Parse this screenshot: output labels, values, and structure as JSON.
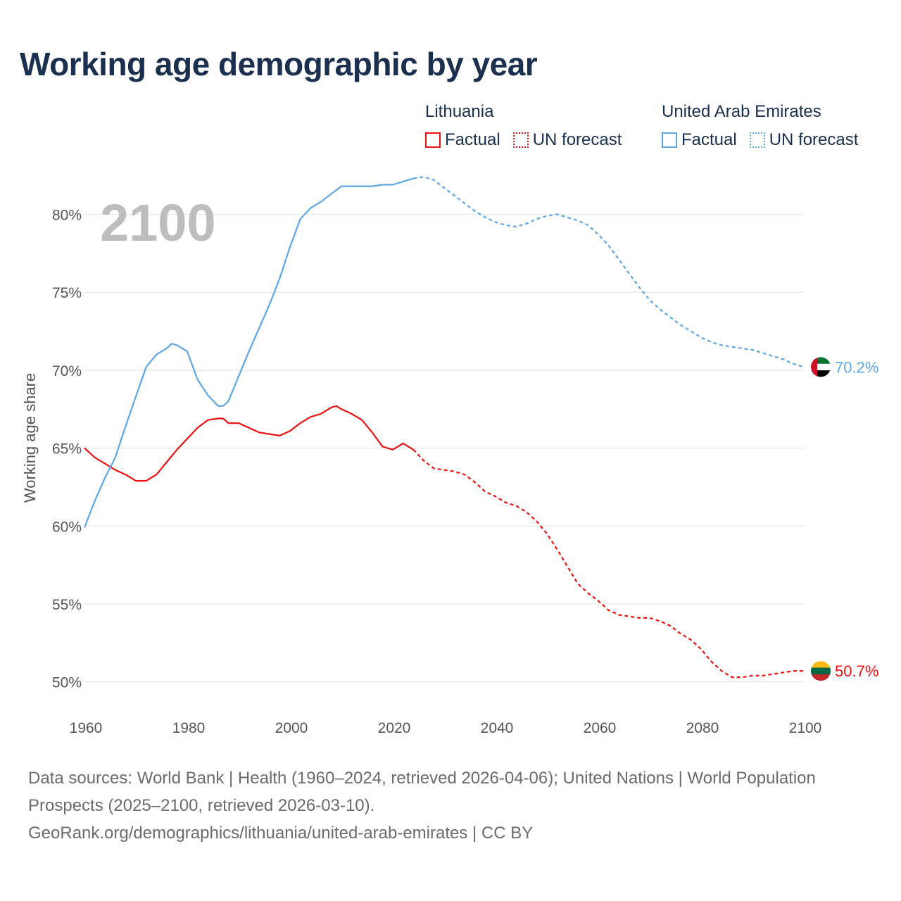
{
  "title": "Working age demographic by year",
  "legend": [
    {
      "country": "Lithuania",
      "factual_label": "Factual",
      "forecast_label": "UN forecast",
      "color": "#ee1111"
    },
    {
      "country": "United Arab Emirates",
      "factual_label": "Factual",
      "forecast_label": "UN forecast",
      "color": "#5ea7e6"
    }
  ],
  "sources": {
    "line1": "Data sources: World Bank | Health (1960–2024, retrieved 2026-04-06); United Nations | World Population Prospects (2025–2100, retrieved 2026-03-10).",
    "line2": "GeoRank.org/demographics/lithuania/united-arab-emirates | CC BY"
  },
  "chart_data": {
    "type": "line",
    "title": "Working age demographic by year",
    "xlabel": "",
    "ylabel": "Working age share",
    "year_display": "2100",
    "xlim": [
      1960,
      2100
    ],
    "ylim": [
      48,
      83
    ],
    "x_ticks": [
      1960,
      1980,
      2000,
      2020,
      2040,
      2060,
      2080,
      2100
    ],
    "x_tick_labels": [
      "1960",
      "1980",
      "2000",
      "2020",
      "2040",
      "2060",
      "2080",
      "2100"
    ],
    "y_ticks": [
      50,
      55,
      60,
      65,
      70,
      75,
      80
    ],
    "y_tick_labels": [
      "50%",
      "55%",
      "60%",
      "65%",
      "70%",
      "75%",
      "80%"
    ],
    "grid": true,
    "factual_end_year": 2024,
    "series": [
      {
        "name": "Lithuania",
        "color": "#ee1111",
        "end_label": "50.7%",
        "flag_icon": "lithuania-flag-icon",
        "flag_colors": [
          "#fdb913",
          "#006a44",
          "#c1272d"
        ],
        "x": [
          1960,
          1962,
          1964,
          1966,
          1968,
          1970,
          1972,
          1974,
          1976,
          1978,
          1980,
          1982,
          1984,
          1986,
          1987,
          1988,
          1990,
          1992,
          1994,
          1996,
          1998,
          2000,
          2002,
          2004,
          2006,
          2008,
          2009,
          2010,
          2012,
          2014,
          2016,
          2018,
          2020,
          2022,
          2024,
          2026,
          2028,
          2030,
          2032,
          2034,
          2036,
          2038,
          2040,
          2042,
          2044,
          2046,
          2048,
          2050,
          2052,
          2054,
          2056,
          2058,
          2060,
          2062,
          2064,
          2066,
          2068,
          2070,
          2072,
          2074,
          2076,
          2078,
          2080,
          2082,
          2084,
          2086,
          2088,
          2090,
          2092,
          2094,
          2096,
          2098,
          2100
        ],
        "y": [
          65.0,
          64.4,
          64.0,
          63.6,
          63.3,
          62.9,
          62.9,
          63.3,
          64.1,
          64.9,
          65.6,
          66.3,
          66.8,
          66.9,
          66.9,
          66.6,
          66.6,
          66.3,
          66.0,
          65.9,
          65.8,
          66.1,
          66.6,
          67.0,
          67.2,
          67.6,
          67.7,
          67.5,
          67.2,
          66.8,
          66.0,
          65.1,
          64.9,
          65.3,
          64.9,
          64.2,
          63.7,
          63.6,
          63.5,
          63.3,
          62.8,
          62.2,
          61.9,
          61.5,
          61.3,
          60.9,
          60.3,
          59.5,
          58.5,
          57.4,
          56.3,
          55.7,
          55.2,
          54.6,
          54.3,
          54.2,
          54.1,
          54.1,
          53.9,
          53.6,
          53.1,
          52.7,
          52.1,
          51.3,
          50.7,
          50.3,
          50.3,
          50.4,
          50.4,
          50.5,
          50.6,
          50.7,
          50.7
        ]
      },
      {
        "name": "United Arab Emirates",
        "color": "#5ea7e6",
        "end_label": "70.2%",
        "flag_icon": "uae-flag-icon",
        "flag_colors": [
          "#ce1126",
          "#00732f",
          "#ffffff",
          "#000000"
        ],
        "x": [
          1960,
          1962,
          1964,
          1966,
          1968,
          1970,
          1972,
          1974,
          1976,
          1977,
          1978,
          1980,
          1982,
          1984,
          1986,
          1987,
          1988,
          1990,
          1992,
          1994,
          1996,
          1998,
          2000,
          2002,
          2004,
          2006,
          2008,
          2010,
          2012,
          2014,
          2016,
          2018,
          2020,
          2022,
          2024,
          2026,
          2028,
          2030,
          2032,
          2034,
          2036,
          2038,
          2040,
          2042,
          2044,
          2046,
          2048,
          2050,
          2052,
          2054,
          2056,
          2058,
          2060,
          2062,
          2064,
          2066,
          2068,
          2070,
          2072,
          2074,
          2076,
          2078,
          2080,
          2082,
          2084,
          2086,
          2088,
          2090,
          2092,
          2094,
          2096,
          2098,
          2100
        ],
        "y": [
          59.9,
          61.6,
          63.1,
          64.4,
          66.4,
          68.3,
          70.2,
          71.0,
          71.4,
          71.7,
          71.6,
          71.2,
          69.4,
          68.4,
          67.7,
          67.7,
          68.0,
          69.6,
          71.2,
          72.7,
          74.2,
          75.9,
          77.9,
          79.7,
          80.4,
          80.8,
          81.3,
          81.8,
          81.8,
          81.8,
          81.8,
          81.9,
          81.9,
          82.1,
          82.3,
          82.4,
          82.2,
          81.7,
          81.2,
          80.7,
          80.2,
          79.8,
          79.5,
          79.3,
          79.2,
          79.4,
          79.7,
          79.9,
          80.0,
          79.8,
          79.6,
          79.3,
          78.7,
          78.0,
          77.1,
          76.2,
          75.3,
          74.5,
          73.9,
          73.4,
          72.9,
          72.5,
          72.1,
          71.8,
          71.6,
          71.5,
          71.4,
          71.3,
          71.1,
          70.9,
          70.7,
          70.4,
          70.2
        ]
      }
    ]
  }
}
